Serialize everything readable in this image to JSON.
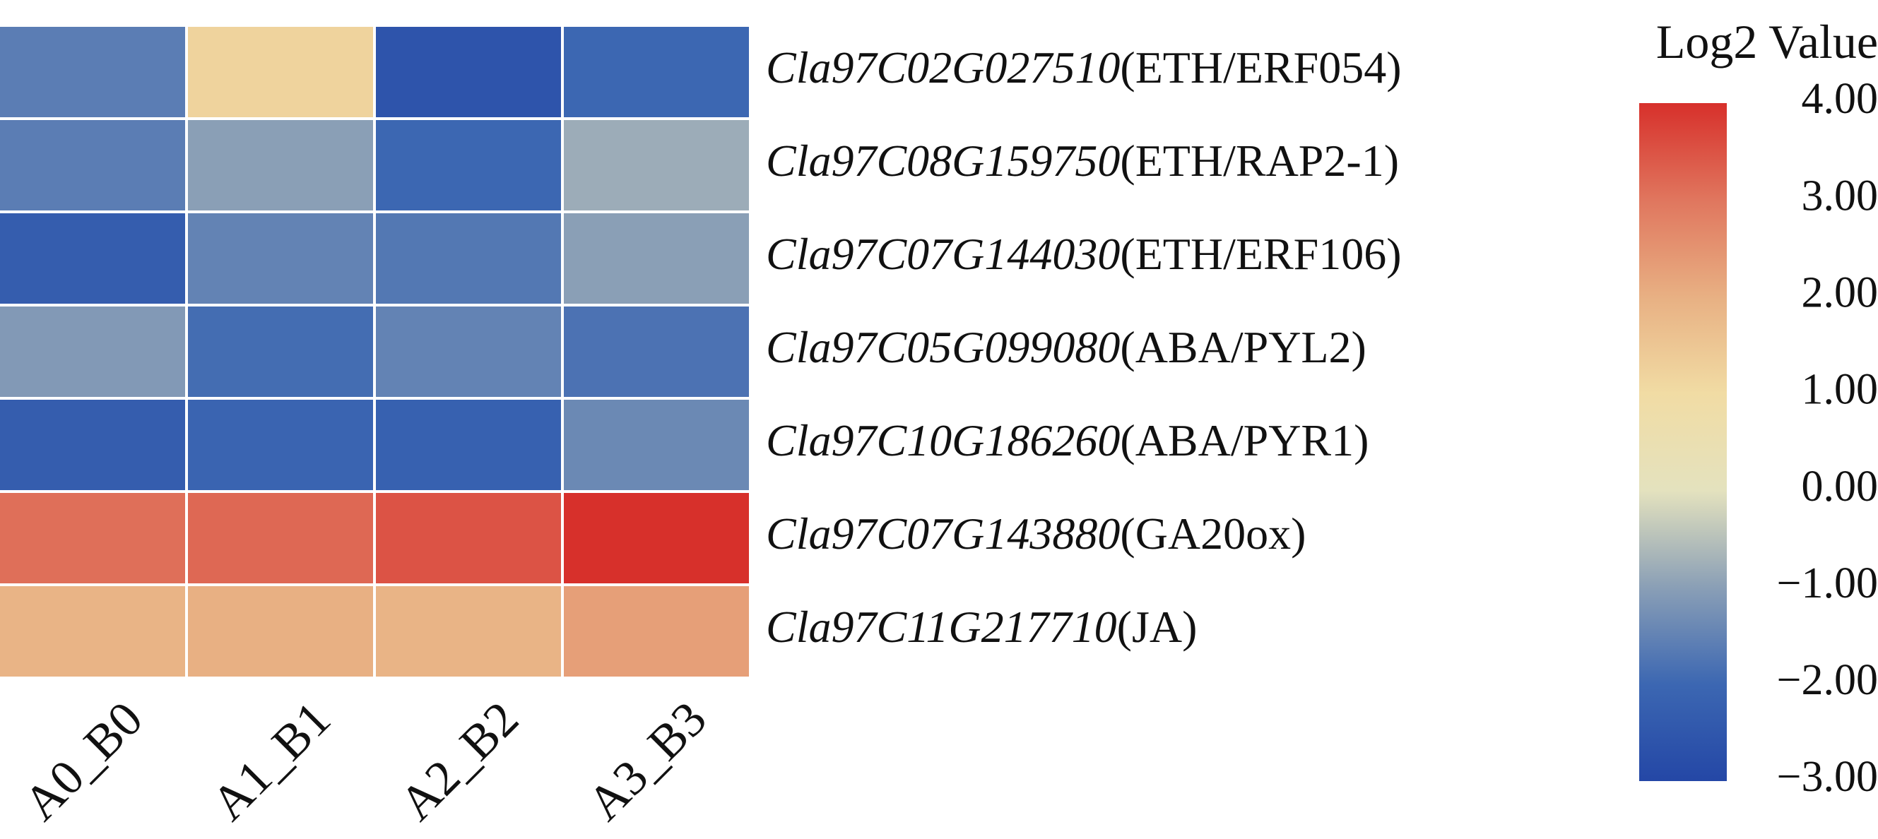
{
  "chart_data": {
    "type": "heatmap",
    "title": "",
    "columns": [
      "A0_B0",
      "A1_B1",
      "A2_B2",
      "A3_B3"
    ],
    "rows": [
      {
        "gene_id": "Cla97C02G027510",
        "annotation": "(ETH/ERF054)",
        "values": [
          -1.6,
          1.2,
          -2.6,
          -2.0
        ]
      },
      {
        "gene_id": "Cla97C08G159750",
        "annotation": "(ETH/RAP2-1)",
        "values": [
          -1.6,
          -1.0,
          -2.0,
          -0.8
        ]
      },
      {
        "gene_id": "Cla97C07G144030",
        "annotation": "(ETH/ERF106)",
        "values": [
          -2.3,
          -1.5,
          -1.7,
          -1.0
        ]
      },
      {
        "gene_id": "Cla97C05G099080",
        "annotation": "(ABA/PYL2)",
        "values": [
          -1.1,
          -1.9,
          -1.5,
          -1.8
        ]
      },
      {
        "gene_id": "Cla97C10G186260",
        "annotation": "(ABA/PYR1)",
        "values": [
          -2.3,
          -2.1,
          -2.2,
          -1.4
        ]
      },
      {
        "gene_id": "Cla97C07G143880",
        "annotation": "(GA20ox)",
        "values": [
          3.1,
          3.2,
          3.5,
          4.0
        ]
      },
      {
        "gene_id": "Cla97C11G217710",
        "annotation": "(JA)",
        "values": [
          1.9,
          2.0,
          1.9,
          2.3
        ]
      }
    ],
    "colorbar": {
      "title": "Log2 Value",
      "min": -3.0,
      "max": 4.0,
      "ticks": [
        "4.00",
        "3.00",
        "2.00",
        "1.00",
        "0.00",
        "−1.00",
        "−2.00",
        "−3.00"
      ],
      "tick_values": [
        4,
        3,
        2,
        1,
        0,
        -1,
        -2,
        -3
      ],
      "stops": [
        {
          "value": -3.0,
          "color": "#2447a6"
        },
        {
          "value": -2.0,
          "color": "#3c67b2"
        },
        {
          "value": -1.0,
          "color": "#8a9fb6"
        },
        {
          "value": 0.0,
          "color": "#e4e2be"
        },
        {
          "value": 1.0,
          "color": "#f1dca4"
        },
        {
          "value": 2.0,
          "color": "#e8b083"
        },
        {
          "value": 3.0,
          "color": "#e0765e"
        },
        {
          "value": 4.0,
          "color": "#d7302b"
        }
      ]
    }
  }
}
